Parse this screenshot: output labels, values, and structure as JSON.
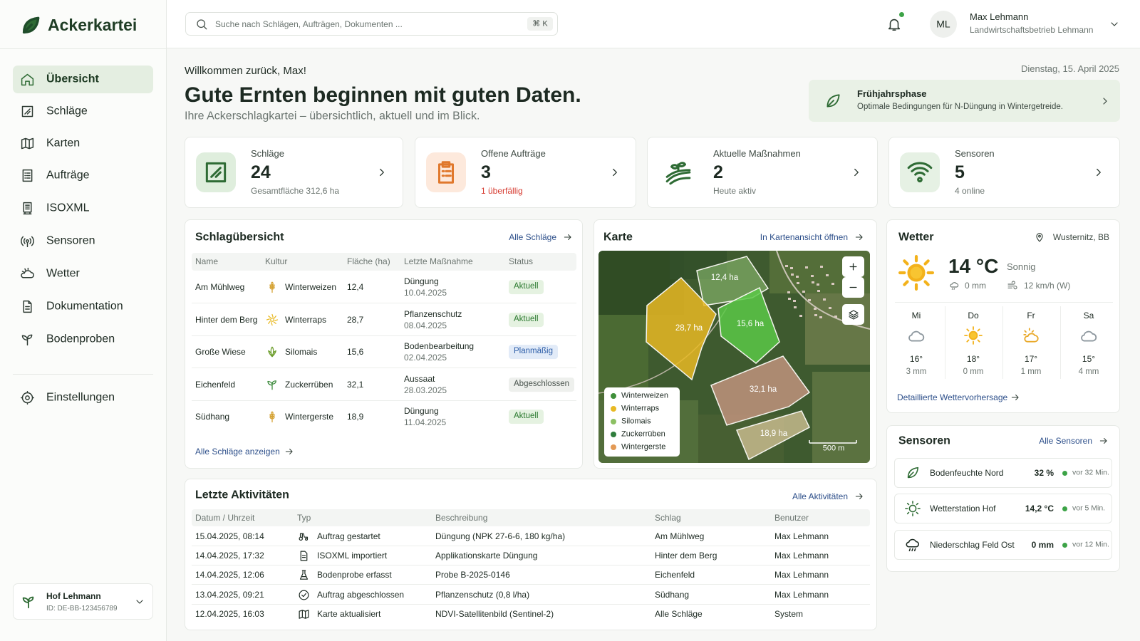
{
  "brand": "Ackerkartei",
  "search": {
    "placeholder": "Suche nach Schlägen, Aufträgen, Dokumenten ...",
    "shortcut": "⌘ K"
  },
  "user": {
    "initials": "ML",
    "name": "Max Lehmann",
    "org": "Landwirtschaftsbetrieb Lehmann"
  },
  "nav": [
    "Übersicht",
    "Schläge",
    "Karten",
    "Aufträge",
    "ISOXML",
    "Sensoren",
    "Wetter",
    "Dokumentation",
    "Bodenproben"
  ],
  "settings": "Einstellungen",
  "farm": {
    "name": "Hof Lehmann",
    "id": "ID: DE-BB-123456789"
  },
  "greeting": "Willkommen zurück, Max!",
  "date": "Dienstag, 15. April 2025",
  "headline": "Gute Ernten beginnen mit guten Daten.",
  "subline": "Ihre Ackerschlagkartei – übersichtlich, aktuell und im Blick.",
  "phase": {
    "title": "Frühjahrsphase",
    "text": "Optimale Bedingungen für N-Düngung in Wintergetreide."
  },
  "kpis": [
    {
      "label": "Schläge",
      "value": 24,
      "note": "Gesamtfläche 312,6 ha"
    },
    {
      "label": "Offene Aufträge",
      "value": 3,
      "note": "1 überfällig"
    },
    {
      "label": "Aktuelle Maßnahmen",
      "value": 2,
      "note": "Heute aktiv"
    },
    {
      "label": "Sensoren",
      "value": 5,
      "note": "4 online"
    }
  ],
  "fields": {
    "title": "Schlagübersicht",
    "link": "Alle Schläge",
    "columns": [
      "Name",
      "Kultur",
      "Fläche (ha)",
      "Letzte Maßnahme",
      "Status"
    ],
    "rows": [
      [
        "Am Mühlweg",
        "Winterweizen",
        "12,4",
        "Düngung",
        "10.04.2025",
        "Aktuell"
      ],
      [
        "Hinter dem Berg",
        "Winterraps",
        "28,7",
        "Pflanzenschutz",
        "08.04.2025",
        "Aktuell"
      ],
      [
        "Große Wiese",
        "Silomais",
        "15,6",
        "Bodenbearbeitung",
        "02.04.2025",
        "Planmäßig"
      ],
      [
        "Eichenfeld",
        "Zuckerrüben",
        "32,1",
        "Aussaat",
        "28.03.2025",
        "Abgeschlossen"
      ],
      [
        "Südhang",
        "Wintergerste",
        "18,9",
        "Düngung",
        "11.04.2025",
        "Aktuell"
      ]
    ],
    "footer": "Alle Schläge anzeigen"
  },
  "map": {
    "title": "Karte",
    "link": "In Kartenansicht öffnen",
    "legend": [
      {
        "name": "Winterweizen",
        "color": "#3f8f3a"
      },
      {
        "name": "Winterraps",
        "color": "#e8b923"
      },
      {
        "name": "Silomais",
        "color": "#8cc063"
      },
      {
        "name": "Zuckerrüben",
        "color": "#2f7d3c"
      },
      {
        "name": "Wintergerste",
        "color": "#e39a55"
      }
    ],
    "labels": [
      "12,4 ha",
      "28,7 ha",
      "15,6 ha",
      "32,1 ha",
      "18,9 ha"
    ],
    "scale": "500 m"
  },
  "weather": {
    "title": "Wetter",
    "location": "Wusternitz, BB",
    "temp": "14 °C",
    "condition": "Sonnig",
    "rain": "0 mm",
    "wind": "12 km/h (W)",
    "forecast": [
      {
        "day": "Mi",
        "temp": "16°",
        "rain": "3 mm"
      },
      {
        "day": "Do",
        "temp": "18°",
        "rain": "0 mm"
      },
      {
        "day": "Fr",
        "temp": "17°",
        "rain": "1 mm"
      },
      {
        "day": "Sa",
        "temp": "15°",
        "rain": "4 mm"
      }
    ],
    "link": "Detaillierte Wettervorhersage"
  },
  "sensors": {
    "title": "Sensoren",
    "link": "Alle Sensoren",
    "items": [
      {
        "name": "Bodenfeuchte Nord",
        "value": "32 %",
        "time": "vor 32 Min."
      },
      {
        "name": "Wetterstation Hof",
        "value": "14,2 °C",
        "time": "vor 5 Min."
      },
      {
        "name": "Niederschlag Feld Ost",
        "value": "0 mm",
        "time": "vor 12 Min."
      }
    ]
  },
  "activities": {
    "title": "Letzte Aktivitäten",
    "link": "Alle Aktivitäten",
    "columns": [
      "Datum / Uhrzeit",
      "Typ",
      "Beschreibung",
      "Schlag",
      "Benutzer"
    ],
    "rows": [
      [
        "15.04.2025, 08:14",
        "Auftrag gestartet",
        "Düngung (NPK 27-6-6, 180 kg/ha)",
        "Am Mühlweg",
        "Max Lehmann"
      ],
      [
        "14.04.2025, 17:32",
        "ISOXML importiert",
        "Applikationskarte Düngung",
        "Hinter dem Berg",
        "Max Lehmann"
      ],
      [
        "14.04.2025, 12:06",
        "Bodenprobe erfasst",
        "Probe B-2025-0146",
        "Eichenfeld",
        "Max Lehmann"
      ],
      [
        "13.04.2025, 09:21",
        "Auftrag abgeschlossen",
        "Pflanzenschutz (0,8 l/ha)",
        "Südhang",
        "Max Lehmann"
      ],
      [
        "12.04.2025, 16:03",
        "Karte aktualisiert",
        "NDVI-Satellitenbild (Sentinel-2)",
        "Alle Schläge",
        "System"
      ]
    ]
  }
}
